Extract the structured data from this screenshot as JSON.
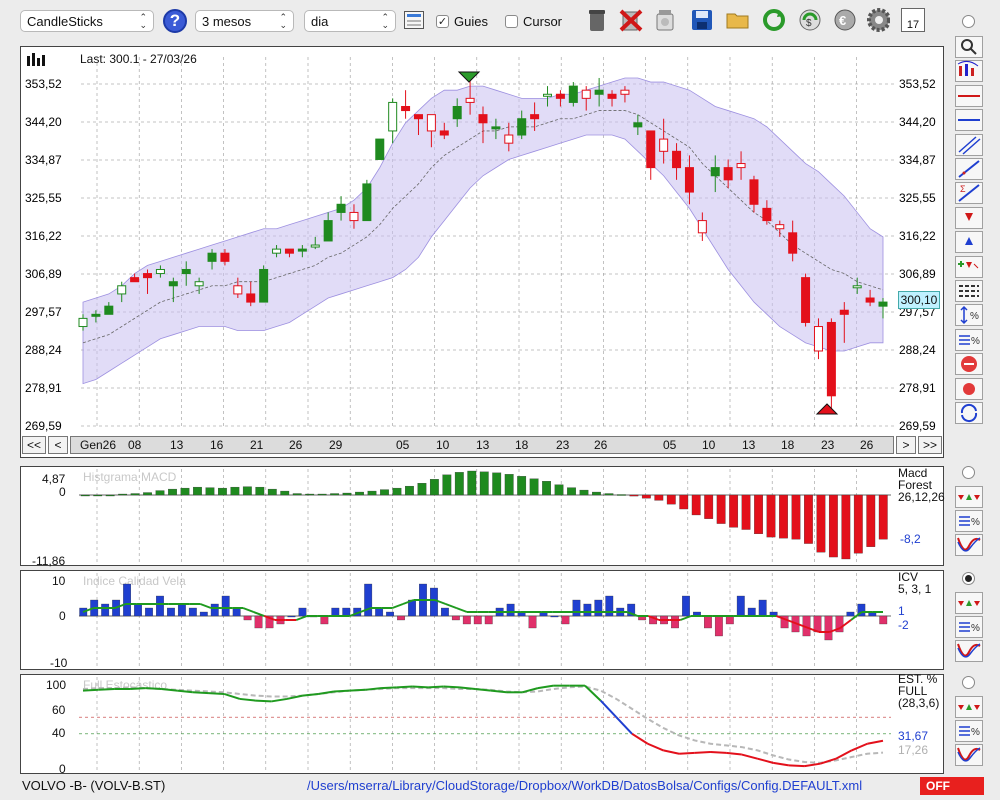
{
  "toolbar": {
    "chart_type": "CandleSticks",
    "period": "3 mesos",
    "interval": "dia",
    "guides_label": "Guies",
    "guides_checked": true,
    "cursor_label": "Cursor",
    "cursor_checked": false,
    "calendar_day": "17",
    "icons": [
      "help-icon",
      "grid-icon",
      "trash-icon",
      "delete-icon",
      "jar-icon",
      "save-icon",
      "folder-icon",
      "refresh-icon",
      "sync-icon",
      "euro-icon",
      "gear-icon",
      "calendar-icon"
    ]
  },
  "price_panel": {
    "last": "Last: 300.1 - 27/03/26",
    "current_value": "300,10",
    "yticks": [
      "353,52",
      "344,20",
      "334,87",
      "325,55",
      "316,22",
      "306,89",
      "297,57",
      "288,24",
      "278,91",
      "269,59"
    ]
  },
  "date_nav": {
    "first": "<<",
    "prev": "<",
    "next": ">",
    "last": ">>",
    "labels": [
      "Gen26",
      "08",
      "13",
      "16",
      "21",
      "26",
      "29",
      "05",
      "10",
      "13",
      "18",
      "23",
      "26",
      "05",
      "10",
      "13",
      "18",
      "23",
      "26"
    ]
  },
  "macd_panel": {
    "title": "Histgrama MACD",
    "ytop": "4,87",
    "yzero": "0",
    "ybottom": "-11,86",
    "name": "Macd",
    "name2": "Forest",
    "params": "26,12,26",
    "value": "-8,2"
  },
  "icv_panel": {
    "title": "Indice Calidad Vela",
    "ytop": "10",
    "yzero": "0",
    "ybottom": "-10",
    "name": "ICV",
    "params": "5, 3, 1",
    "value1": "1",
    "value2": "-2"
  },
  "est_panel": {
    "title": "Full Estocástico",
    "yticks": [
      "100",
      "60",
      "40",
      "0"
    ],
    "name": "EST. %",
    "name2": "FULL",
    "params": "(28,3,6)",
    "value1": "31,67",
    "value2": "17,26"
  },
  "status": {
    "symbol": "VOLVO -B- (VOLV-B.ST)",
    "path": "/Users/mserra/Library/CloudStorage/Dropbox/WorkDB/DatosBolsa/Configs/Config.DEFAULT.xml",
    "off": "OFF"
  },
  "colors": {
    "up": "#1f8a1f",
    "down": "#e3101b",
    "band": "#c9c0f0",
    "blue": "#1f3fd0",
    "pink": "#e0306a"
  },
  "chart_data": [
    {
      "type": "candlestick",
      "ylim": [
        269.59,
        358
      ],
      "ohlc": [
        [
          294,
          297,
          293,
          296
        ],
        [
          297,
          298,
          295,
          297
        ],
        [
          297,
          300,
          297,
          299
        ],
        [
          302,
          305,
          300,
          304
        ],
        [
          306,
          307,
          305,
          305
        ],
        [
          307,
          308,
          302,
          306
        ],
        [
          307,
          309,
          306,
          308
        ],
        [
          304,
          306,
          300,
          305
        ],
        [
          307,
          310,
          304,
          308
        ],
        [
          304,
          306,
          302,
          305
        ],
        [
          310,
          313,
          308,
          312
        ],
        [
          312,
          313,
          309,
          310
        ],
        [
          304,
          306,
          301,
          302
        ],
        [
          302,
          305,
          299,
          300
        ],
        [
          300,
          309,
          300,
          308
        ],
        [
          312,
          314,
          311,
          313
        ],
        [
          313,
          313,
          311,
          312
        ],
        [
          313,
          314,
          311,
          313
        ],
        [
          314,
          316,
          313,
          314
        ],
        [
          315,
          322,
          315,
          320
        ],
        [
          322,
          326,
          320,
          324
        ],
        [
          322,
          324,
          318,
          320
        ],
        [
          320,
          330,
          320,
          329
        ],
        [
          335,
          340,
          335,
          340
        ],
        [
          342,
          350,
          339,
          349
        ],
        [
          348,
          352,
          345,
          347
        ],
        [
          346,
          346,
          341,
          345
        ],
        [
          346,
          346,
          338,
          342
        ],
        [
          342,
          344,
          340,
          341
        ],
        [
          345,
          350,
          343,
          348
        ],
        [
          350,
          356,
          346,
          349
        ],
        [
          346,
          348,
          339,
          344
        ],
        [
          343,
          345,
          340,
          343
        ],
        [
          341,
          344,
          337,
          339
        ],
        [
          341,
          347,
          340,
          345
        ],
        [
          346,
          349,
          342,
          345
        ],
        [
          351,
          353,
          348,
          351
        ],
        [
          351,
          352,
          348,
          350
        ],
        [
          349,
          354,
          348,
          353
        ],
        [
          352,
          353,
          347,
          350
        ],
        [
          351,
          355,
          348,
          352
        ],
        [
          351,
          352,
          348,
          350
        ],
        [
          352,
          353,
          349,
          351
        ],
        [
          343,
          346,
          341,
          344
        ],
        [
          342,
          342,
          330,
          333
        ],
        [
          340,
          345,
          334,
          337
        ],
        [
          337,
          339,
          330,
          333
        ],
        [
          333,
          336,
          324,
          327
        ],
        [
          320,
          322,
          315,
          317
        ],
        [
          331,
          336,
          327,
          333
        ],
        [
          333,
          335,
          328,
          330
        ],
        [
          334,
          337,
          330,
          333
        ],
        [
          330,
          331,
          322,
          324
        ],
        [
          323,
          325,
          319,
          320
        ],
        [
          319,
          320,
          316,
          318
        ],
        [
          317,
          320,
          310,
          312
        ],
        [
          306,
          307,
          294,
          295
        ],
        [
          294,
          296,
          286,
          288
        ],
        [
          295,
          296,
          274,
          277
        ],
        [
          298,
          300,
          290,
          297
        ],
        [
          304,
          306,
          302,
          304
        ],
        [
          301,
          303,
          299,
          300
        ],
        [
          299,
          301,
          296,
          300
        ]
      ],
      "bands": {
        "upper": [
          300,
          301,
          302,
          304,
          307,
          309,
          310,
          311,
          312,
          313,
          314,
          315,
          316,
          317,
          318,
          318,
          319,
          320,
          321,
          322,
          323,
          325,
          328,
          333,
          339,
          344,
          347,
          350,
          352,
          352,
          353,
          353,
          352,
          351,
          350,
          350,
          350,
          351,
          351,
          352,
          353,
          354,
          355,
          355,
          354,
          354,
          353,
          352,
          350,
          348,
          347,
          346,
          345,
          343,
          340,
          337,
          334,
          332,
          329,
          326,
          322,
          318,
          316
        ],
        "lower": [
          280,
          281,
          283,
          285,
          287,
          289,
          291,
          292,
          293,
          294,
          294,
          294,
          293,
          293,
          293,
          294,
          295,
          297,
          299,
          301,
          302,
          303,
          304,
          305,
          306,
          308,
          311,
          316,
          320,
          324,
          328,
          331,
          333,
          335,
          336,
          337,
          338,
          339,
          340,
          341,
          341,
          341,
          340,
          337,
          334,
          331,
          327,
          323,
          318,
          313,
          308,
          304,
          300,
          297,
          294,
          292,
          290,
          289,
          288,
          288,
          289,
          290,
          290
        ],
        "mid": [
          290,
          291,
          292,
          294,
          296,
          298,
          300,
          301,
          302,
          303,
          304,
          304,
          305,
          305,
          305,
          306,
          307,
          308,
          309,
          311,
          312,
          314,
          316,
          319,
          323,
          326,
          329,
          333,
          336,
          338,
          340,
          342,
          342,
          343,
          343,
          343,
          344,
          345,
          345,
          346,
          347,
          347,
          347,
          346,
          344,
          342,
          340,
          338,
          334,
          331,
          328,
          325,
          322,
          320,
          317,
          314,
          312,
          310,
          308,
          307,
          305,
          304,
          303
        ]
      }
    },
    {
      "type": "bar",
      "name": "Histgrama MACD",
      "ylim": [
        -11.86,
        4.87
      ],
      "values": [
        0,
        0,
        0,
        0.2,
        0.3,
        0.5,
        0.9,
        1.2,
        1.4,
        1.6,
        1.5,
        1.4,
        1.6,
        1.7,
        1.6,
        1.2,
        0.8,
        0.3,
        0.2,
        0.2,
        0.3,
        0.4,
        0.6,
        0.8,
        1.1,
        1.4,
        1.8,
        2.4,
        3.2,
        4.1,
        4.6,
        4.87,
        4.7,
        4.5,
        4.2,
        3.8,
        3.3,
        2.8,
        2.1,
        1.5,
        1.0,
        0.6,
        0.3,
        0.1,
        -0.2,
        -0.6,
        -1.0,
        -1.7,
        -2.6,
        -3.7,
        -4.4,
        -5.3,
        -6.0,
        -6.4,
        -7.2,
        -7.8,
        -8.0,
        -8.2,
        -9.0,
        -10.6,
        -11.5,
        -11.86,
        -10.8,
        -9.6,
        -8.2
      ],
      "colors_by_sign": true
    },
    {
      "type": "bar",
      "name": "Indice Calidad Vela",
      "ylim": [
        -10,
        10
      ],
      "values": [
        2,
        4,
        3,
        4,
        8,
        3,
        2,
        5,
        2,
        3,
        2,
        1,
        3,
        5,
        2,
        -1,
        -3,
        -3,
        -2,
        0,
        2,
        0,
        -2,
        2,
        2,
        2,
        8,
        2,
        1,
        -1,
        4,
        8,
        7,
        2,
        -1,
        -2,
        -2,
        -2,
        2,
        3,
        1,
        -3,
        1,
        0,
        -2,
        4,
        3,
        4,
        5,
        2,
        3,
        -1,
        -2,
        -2,
        -3,
        5,
        1,
        -3,
        -5,
        -2,
        5,
        2,
        4,
        1,
        -3,
        -4,
        -5,
        -4,
        -6,
        -4,
        1,
        3,
        1,
        -2
      ],
      "line": [
        1,
        2,
        2,
        2,
        3,
        3,
        3,
        3,
        3,
        3,
        3,
        3,
        2,
        2,
        2,
        2,
        1,
        0,
        -1,
        -1,
        -1,
        0,
        0,
        0,
        0,
        0,
        1,
        2,
        2,
        2,
        3,
        4,
        4,
        4,
        3,
        2,
        1,
        1,
        1,
        1,
        1,
        1,
        1,
        1,
        1,
        1,
        1,
        1,
        1,
        1,
        1,
        1,
        0,
        0,
        -1,
        -1,
        -1,
        0,
        0,
        0,
        0,
        0,
        0,
        0,
        0,
        0,
        -1,
        -2,
        -3,
        -4,
        -4,
        -3,
        -1,
        1,
        1,
        1
      ]
    },
    {
      "type": "line",
      "name": "Full Estocástico",
      "ylim": [
        0,
        100
      ],
      "series": [
        {
          "values": [
            92,
            93,
            94,
            94,
            95,
            94,
            92,
            90,
            89,
            88,
            82,
            80,
            79,
            82,
            86,
            88,
            91,
            92,
            93,
            95,
            96,
            97,
            96,
            97,
            96,
            94,
            92,
            90,
            90,
            95,
            98,
            98,
            98,
            80,
            60,
            40,
            28,
            20,
            16,
            17,
            18,
            17,
            15,
            10,
            5,
            2,
            1,
            4,
            10,
            20,
            28,
            31.67
          ]
        },
        {
          "values": [
            94,
            95,
            95,
            96,
            95,
            94,
            93,
            92,
            91,
            90,
            88,
            86,
            85,
            85,
            86,
            88,
            90,
            92,
            93,
            94,
            95,
            95,
            95,
            95,
            94,
            94,
            93,
            91,
            90,
            91,
            94,
            96,
            97,
            92,
            82,
            70,
            58,
            47,
            38,
            32,
            28,
            26,
            24,
            20,
            14,
            9,
            6,
            5,
            8,
            12,
            16,
            17.26
          ]
        }
      ],
      "levels": [
        60,
        40
      ]
    }
  ]
}
